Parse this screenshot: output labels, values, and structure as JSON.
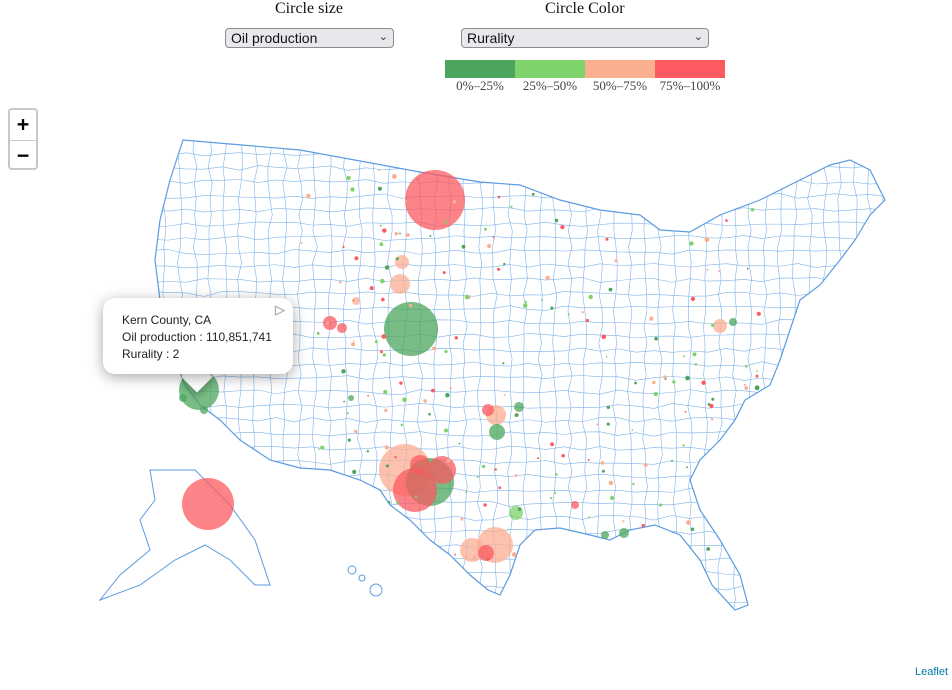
{
  "controls": {
    "size_label": "Circle size",
    "size_value": "Oil production",
    "color_label": "Circle Color",
    "color_value": "Rurality"
  },
  "legend": [
    {
      "label": "0%–25%",
      "color": "#4ca55c"
    },
    {
      "label": "25%–50%",
      "color": "#7ed36a"
    },
    {
      "label": "50%–75%",
      "color": "#fcae91"
    },
    {
      "label": "75%–100%",
      "color": "#fb5a60"
    }
  ],
  "zoom": {
    "in": "+",
    "out": "−"
  },
  "popup": {
    "title": "Kern County, CA",
    "line1": "Oil production : 110,851,741",
    "line2": "Rurality : 2"
  },
  "attribution": "Leaflet",
  "colors": {
    "county_border": "#7fb3e8",
    "state_border": "#5b9be0",
    "land": "#ffffff"
  }
}
